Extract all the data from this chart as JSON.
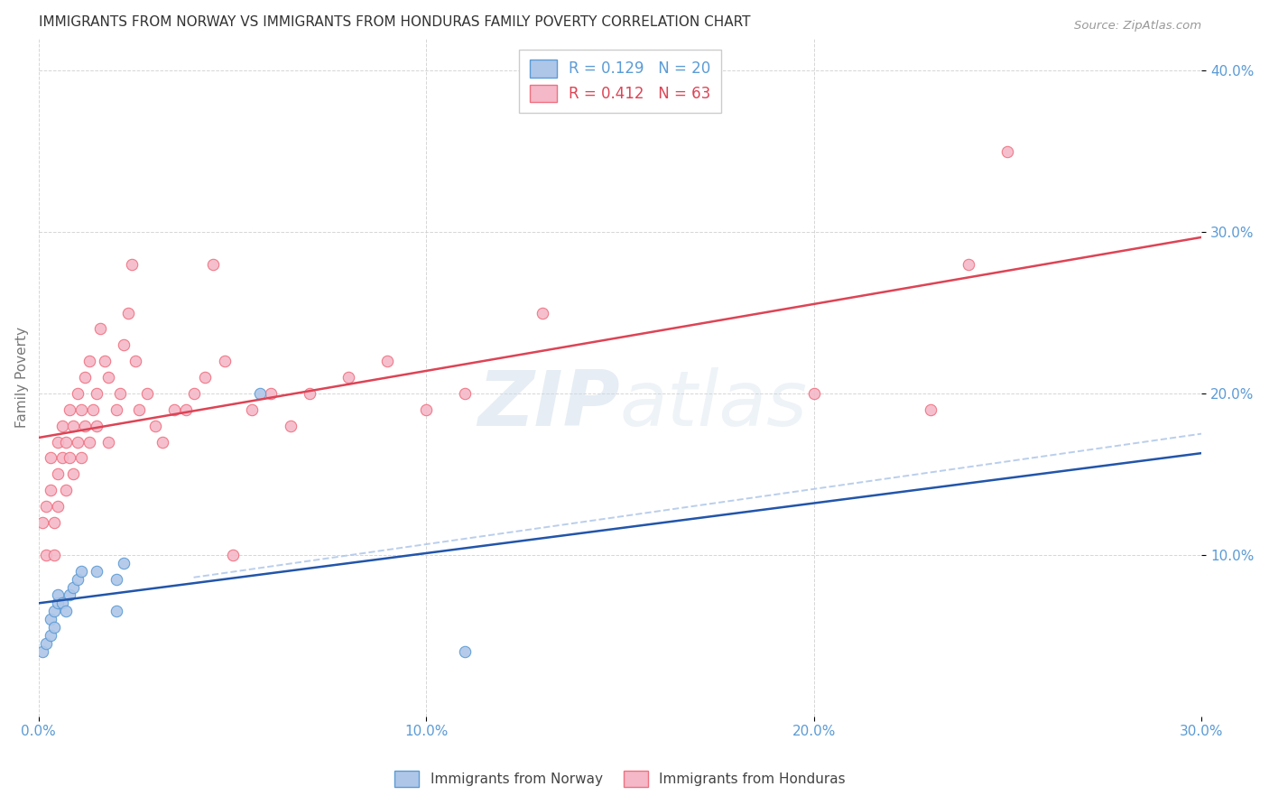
{
  "title": "IMMIGRANTS FROM NORWAY VS IMMIGRANTS FROM HONDURAS FAMILY POVERTY CORRELATION CHART",
  "source": "Source: ZipAtlas.com",
  "ylabel": "Family Poverty",
  "norway_label": "Immigrants from Norway",
  "honduras_label": "Immigrants from Honduras",
  "norway_R": 0.129,
  "norway_N": 20,
  "honduras_R": 0.412,
  "honduras_N": 63,
  "norway_fill_color": "#aec6e8",
  "norway_edge_color": "#5b9bd5",
  "honduras_fill_color": "#f4b8c8",
  "honduras_edge_color": "#f07080",
  "norway_trend_color": "#2255aa",
  "honduras_trend_color": "#dd4455",
  "dashed_trend_color": "#aec6e8",
  "norway_x": [
    0.001,
    0.002,
    0.003,
    0.003,
    0.004,
    0.004,
    0.005,
    0.005,
    0.006,
    0.007,
    0.008,
    0.009,
    0.01,
    0.011,
    0.015,
    0.02,
    0.02,
    0.022,
    0.057,
    0.11
  ],
  "norway_y": [
    0.04,
    0.045,
    0.05,
    0.06,
    0.055,
    0.065,
    0.07,
    0.075,
    0.07,
    0.065,
    0.075,
    0.08,
    0.085,
    0.09,
    0.09,
    0.085,
    0.065,
    0.095,
    0.2,
    0.04
  ],
  "honduras_x": [
    0.001,
    0.002,
    0.002,
    0.003,
    0.003,
    0.004,
    0.004,
    0.005,
    0.005,
    0.005,
    0.006,
    0.006,
    0.007,
    0.007,
    0.008,
    0.008,
    0.009,
    0.009,
    0.01,
    0.01,
    0.011,
    0.011,
    0.012,
    0.012,
    0.013,
    0.013,
    0.014,
    0.015,
    0.015,
    0.016,
    0.017,
    0.018,
    0.018,
    0.02,
    0.021,
    0.022,
    0.023,
    0.024,
    0.025,
    0.026,
    0.028,
    0.03,
    0.032,
    0.035,
    0.038,
    0.04,
    0.043,
    0.045,
    0.048,
    0.05,
    0.055,
    0.06,
    0.065,
    0.07,
    0.08,
    0.09,
    0.1,
    0.11,
    0.13,
    0.2,
    0.23,
    0.24,
    0.25
  ],
  "honduras_y": [
    0.12,
    0.1,
    0.13,
    0.14,
    0.16,
    0.1,
    0.12,
    0.15,
    0.13,
    0.17,
    0.16,
    0.18,
    0.14,
    0.17,
    0.16,
    0.19,
    0.15,
    0.18,
    0.17,
    0.2,
    0.19,
    0.16,
    0.18,
    0.21,
    0.17,
    0.22,
    0.19,
    0.18,
    0.2,
    0.24,
    0.22,
    0.21,
    0.17,
    0.19,
    0.2,
    0.23,
    0.25,
    0.28,
    0.22,
    0.19,
    0.2,
    0.18,
    0.17,
    0.19,
    0.19,
    0.2,
    0.21,
    0.28,
    0.22,
    0.1,
    0.19,
    0.2,
    0.18,
    0.2,
    0.21,
    0.22,
    0.19,
    0.2,
    0.25,
    0.2,
    0.19,
    0.28,
    0.35
  ],
  "xlim": [
    0.0,
    0.3
  ],
  "ylim": [
    0.0,
    0.42
  ],
  "yticks": [
    0.1,
    0.2,
    0.3,
    0.4
  ],
  "ytick_labels": [
    "10.0%",
    "20.0%",
    "30.0%",
    "40.0%"
  ],
  "xticks": [
    0.0,
    0.1,
    0.2,
    0.3
  ],
  "xtick_labels": [
    "0.0%",
    "10.0%",
    "20.0%",
    "30.0%"
  ],
  "marker_size": 80,
  "background_color": "#ffffff",
  "grid_color": "#cccccc",
  "title_color": "#333333",
  "axis_tick_color": "#5b9bd5",
  "legend_norway_text_color": "#5b9bd5",
  "legend_honduras_text_color": "#dd4455",
  "watermark_color": "#c8d8e8"
}
